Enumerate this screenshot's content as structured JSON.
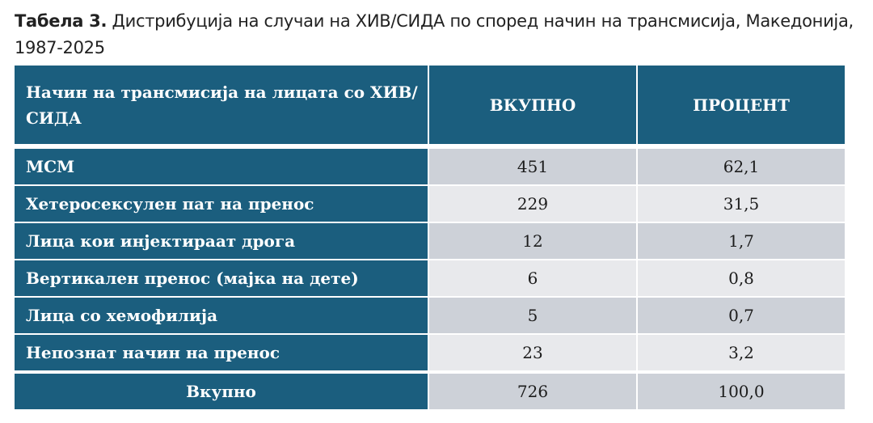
{
  "caption": {
    "label": "Табела 3.",
    "text": "Дистрибуција на случаи на ХИВ/СИДА по според начин на трансмисија, Македонија, 1987-2025"
  },
  "table": {
    "headers": [
      "Начин на трансмисија на лицата со ХИВ/СИДА",
      "ВКУПНО",
      "ПРОЦЕНТ"
    ],
    "rows": [
      {
        "label": "МСМ",
        "total": "451",
        "percent": "62,1"
      },
      {
        "label": "Хетеросексулен пат на пренос",
        "total": "229",
        "percent": "31,5"
      },
      {
        "label": "Лица кои инјектираат дрога",
        "total": "12",
        "percent": "1,7"
      },
      {
        "label": "Вертикален пренос (мајка на дете)",
        "total": "6",
        "percent": "0,8"
      },
      {
        "label": "Лица со хемофилија",
        "total": "5",
        "percent": "0,7"
      },
      {
        "label": "Непознат начин на пренос",
        "total": "23",
        "percent": "3,2"
      }
    ],
    "footer": {
      "label": "Вкупно",
      "total": "726",
      "percent": "100,0"
    },
    "colors": {
      "header": "#1b5e7e",
      "row_dark": "#cdd1d8",
      "row_light": "#e8e9ec"
    }
  }
}
